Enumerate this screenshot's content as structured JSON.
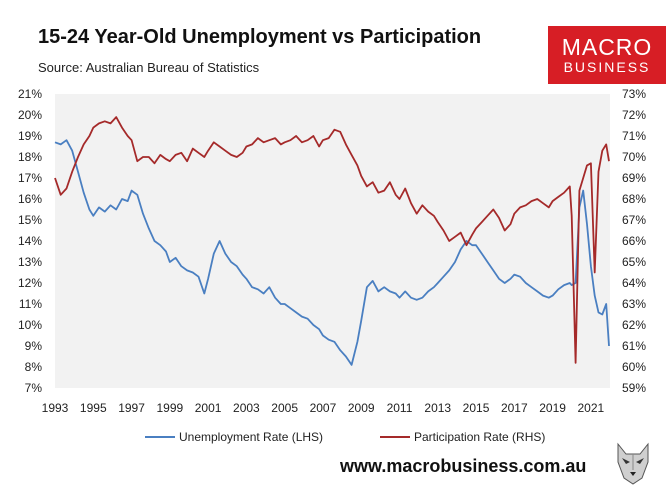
{
  "header": {
    "title": "15-24 Year-Old Unemployment vs Participation",
    "subtitle": "Source: Australian Bureau of Statistics"
  },
  "logo": {
    "line1": "MACRO",
    "line2": "BUSINESS"
  },
  "footer": {
    "website": "www.macrobusiness.com.au",
    "mascot_icon": "wolf-head-icon"
  },
  "colors": {
    "unemployment": "#4a7fc1",
    "participation": "#a52a2a",
    "plot_bg": "#f2f2f2",
    "logo_bg": "#d71e25"
  },
  "chart_data": {
    "type": "line",
    "xlim": [
      1993,
      2022
    ],
    "x_ticks": [
      "1993",
      "1995",
      "1997",
      "1999",
      "2001",
      "2003",
      "2005",
      "2007",
      "2009",
      "2011",
      "2013",
      "2015",
      "2017",
      "2019",
      "2021"
    ],
    "y_left": {
      "range": [
        7,
        21
      ],
      "ticks": [
        "7%",
        "8%",
        "9%",
        "10%",
        "11%",
        "12%",
        "13%",
        "14%",
        "15%",
        "16%",
        "17%",
        "18%",
        "19%",
        "20%",
        "21%"
      ]
    },
    "y_right": {
      "range": [
        59,
        73
      ],
      "ticks": [
        "59%",
        "60%",
        "61%",
        "62%",
        "63%",
        "64%",
        "65%",
        "66%",
        "67%",
        "68%",
        "69%",
        "70%",
        "71%",
        "72%",
        "73%"
      ]
    },
    "grid": false,
    "legend_position": "bottom",
    "series": [
      {
        "name": "Unemployment Rate (LHS)",
        "axis": "left",
        "x": [
          1993.0,
          1993.3,
          1993.6,
          1993.9,
          1994.2,
          1994.5,
          1994.8,
          1995.0,
          1995.3,
          1995.6,
          1995.9,
          1996.2,
          1996.5,
          1996.8,
          1997.0,
          1997.3,
          1997.6,
          1997.9,
          1998.2,
          1998.5,
          1998.8,
          1999.0,
          1999.3,
          1999.6,
          1999.9,
          2000.2,
          2000.5,
          2000.8,
          2001.0,
          2001.3,
          2001.6,
          2001.9,
          2002.2,
          2002.5,
          2002.8,
          2003.0,
          2003.3,
          2003.6,
          2003.9,
          2004.2,
          2004.5,
          2004.8,
          2005.0,
          2005.3,
          2005.6,
          2005.9,
          2006.2,
          2006.5,
          2006.8,
          2007.0,
          2007.3,
          2007.6,
          2007.9,
          2008.2,
          2008.5,
          2008.8,
          2009.0,
          2009.3,
          2009.6,
          2009.9,
          2010.2,
          2010.5,
          2010.8,
          2011.0,
          2011.3,
          2011.6,
          2011.9,
          2012.2,
          2012.5,
          2012.8,
          2013.0,
          2013.3,
          2013.6,
          2013.9,
          2014.2,
          2014.5,
          2014.8,
          2015.0,
          2015.3,
          2015.6,
          2015.9,
          2016.2,
          2016.5,
          2016.8,
          2017.0,
          2017.3,
          2017.6,
          2017.9,
          2018.2,
          2018.5,
          2018.8,
          2019.0,
          2019.3,
          2019.6,
          2019.9,
          2020.0,
          2020.2,
          2020.4,
          2020.6,
          2020.8,
          2021.0,
          2021.2,
          2021.4,
          2021.6,
          2021.8,
          2021.95
        ],
        "y": [
          18.7,
          18.6,
          18.8,
          18.3,
          17.3,
          16.3,
          15.5,
          15.2,
          15.6,
          15.4,
          15.7,
          15.5,
          16.0,
          15.9,
          16.4,
          16.2,
          15.3,
          14.6,
          14.0,
          13.8,
          13.5,
          13.0,
          13.2,
          12.8,
          12.6,
          12.5,
          12.3,
          11.5,
          12.2,
          13.4,
          14.0,
          13.4,
          13.0,
          12.8,
          12.4,
          12.2,
          11.8,
          11.7,
          11.5,
          11.8,
          11.3,
          11.0,
          11.0,
          10.8,
          10.6,
          10.4,
          10.3,
          10.0,
          9.8,
          9.5,
          9.3,
          9.2,
          8.8,
          8.5,
          8.1,
          9.2,
          10.2,
          11.8,
          12.1,
          11.6,
          11.8,
          11.6,
          11.5,
          11.3,
          11.6,
          11.3,
          11.2,
          11.3,
          11.6,
          11.8,
          12.0,
          12.3,
          12.6,
          13.0,
          13.6,
          14.0,
          13.8,
          13.8,
          13.4,
          13.0,
          12.6,
          12.2,
          12.0,
          12.2,
          12.4,
          12.3,
          12.0,
          11.8,
          11.6,
          11.4,
          11.3,
          11.4,
          11.7,
          11.9,
          12.0,
          11.9,
          12.0,
          15.6,
          16.4,
          14.8,
          12.8,
          11.4,
          10.6,
          10.5,
          11.0,
          9.0
        ]
      },
      {
        "name": "Participation Rate (RHS)",
        "axis": "right",
        "x": [
          1993.0,
          1993.3,
          1993.6,
          1993.9,
          1994.2,
          1994.5,
          1994.8,
          1995.0,
          1995.3,
          1995.6,
          1995.9,
          1996.2,
          1996.5,
          1996.8,
          1997.0,
          1997.3,
          1997.6,
          1997.9,
          1998.2,
          1998.5,
          1998.8,
          1999.0,
          1999.3,
          1999.6,
          1999.9,
          2000.2,
          2000.5,
          2000.8,
          2001.0,
          2001.3,
          2001.6,
          2001.9,
          2002.2,
          2002.5,
          2002.8,
          2003.0,
          2003.3,
          2003.6,
          2003.9,
          2004.2,
          2004.5,
          2004.8,
          2005.0,
          2005.3,
          2005.6,
          2005.9,
          2006.2,
          2006.5,
          2006.8,
          2007.0,
          2007.3,
          2007.6,
          2007.9,
          2008.2,
          2008.5,
          2008.8,
          2009.0,
          2009.3,
          2009.6,
          2009.9,
          2010.2,
          2010.5,
          2010.8,
          2011.0,
          2011.3,
          2011.6,
          2011.9,
          2012.2,
          2012.5,
          2012.8,
          2013.0,
          2013.3,
          2013.6,
          2013.9,
          2014.2,
          2014.5,
          2014.8,
          2015.0,
          2015.3,
          2015.6,
          2015.9,
          2016.2,
          2016.5,
          2016.8,
          2017.0,
          2017.3,
          2017.6,
          2017.9,
          2018.2,
          2018.5,
          2018.8,
          2019.0,
          2019.3,
          2019.6,
          2019.9,
          2020.0,
          2020.2,
          2020.4,
          2020.6,
          2020.8,
          2021.0,
          2021.2,
          2021.4,
          2021.6,
          2021.8,
          2021.95
        ],
        "y": [
          69.0,
          68.2,
          68.5,
          69.3,
          70.0,
          70.6,
          71.0,
          71.4,
          71.6,
          71.7,
          71.6,
          71.9,
          71.4,
          71.0,
          70.8,
          69.8,
          70.0,
          70.0,
          69.7,
          70.1,
          69.9,
          69.8,
          70.1,
          70.2,
          69.8,
          70.4,
          70.2,
          70.0,
          70.3,
          70.7,
          70.5,
          70.3,
          70.1,
          70.0,
          70.2,
          70.5,
          70.6,
          70.9,
          70.7,
          70.8,
          70.9,
          70.6,
          70.7,
          70.8,
          71.0,
          70.7,
          70.8,
          71.0,
          70.5,
          70.8,
          70.9,
          71.3,
          71.2,
          70.6,
          70.1,
          69.6,
          69.1,
          68.6,
          68.8,
          68.3,
          68.4,
          68.8,
          68.2,
          68.0,
          68.5,
          67.8,
          67.3,
          67.7,
          67.4,
          67.2,
          66.9,
          66.5,
          66.0,
          66.2,
          66.4,
          65.8,
          66.3,
          66.6,
          66.9,
          67.2,
          67.5,
          67.1,
          66.5,
          66.8,
          67.3,
          67.6,
          67.7,
          67.9,
          68.0,
          67.8,
          67.6,
          67.9,
          68.1,
          68.3,
          68.6,
          67.2,
          60.2,
          68.4,
          69.0,
          69.6,
          69.7,
          64.5,
          69.3,
          70.3,
          70.6,
          69.8
        ]
      }
    ]
  }
}
